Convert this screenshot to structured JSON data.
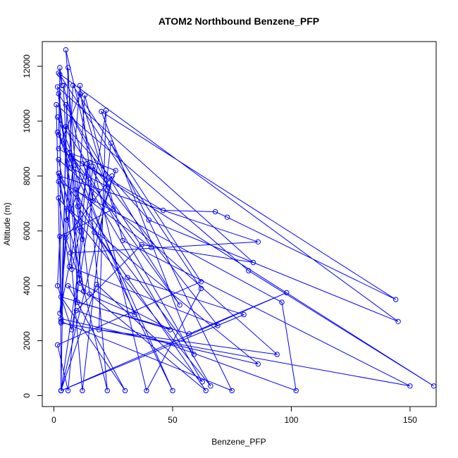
{
  "chart_data": {
    "type": "scatter",
    "title": "ATOM2 Northbound Benzene_PFP",
    "xlabel": "Benzene_PFP",
    "ylabel": "Altitude (m)",
    "xlim": [
      -4.9,
      161
    ],
    "ylim": [
      -400,
      12900
    ],
    "xticks": [
      0,
      50,
      100,
      150
    ],
    "yticks": [
      0,
      2000,
      4000,
      6000,
      8000,
      10000,
      12000
    ],
    "grid": false,
    "legend": "none",
    "colors": {
      "series": "#0000ff",
      "axis": "#000000"
    },
    "series": [
      {
        "points": [
          {
            "x": 3.0,
            "y": 180
          },
          {
            "x": 2.5,
            "y": 11950
          },
          {
            "x": 3.5,
            "y": 11300
          },
          {
            "x": 2.5,
            "y": 11700
          },
          {
            "x": 2.0,
            "y": 9500
          },
          {
            "x": 7.0,
            "y": 8300
          },
          {
            "x": 23.0,
            "y": 7600
          },
          {
            "x": 5.0,
            "y": 10600
          },
          {
            "x": 12.0,
            "y": 5700
          },
          {
            "x": 2.0,
            "y": 8100
          },
          {
            "x": 5.5,
            "y": 6400
          },
          {
            "x": 15.0,
            "y": 8500
          },
          {
            "x": 2.5,
            "y": 3000
          },
          {
            "x": 11.0,
            "y": 11300
          },
          {
            "x": 16.5,
            "y": 7100
          },
          {
            "x": 4.0,
            "y": 11300
          },
          {
            "x": 7.5,
            "y": 4600
          },
          {
            "x": 11.0,
            "y": 6000
          },
          {
            "x": 7.0,
            "y": 8700
          },
          {
            "x": 46.0,
            "y": 6750
          },
          {
            "x": 68.0,
            "y": 6700
          },
          {
            "x": 73.0,
            "y": 6500
          },
          {
            "x": 144.0,
            "y": 3500
          },
          {
            "x": 20.0,
            "y": 10350
          },
          {
            "x": 59.0,
            "y": 1500
          },
          {
            "x": 2.5,
            "y": 8000
          },
          {
            "x": 86.0,
            "y": 5600
          },
          {
            "x": 7.0,
            "y": 5200
          },
          {
            "x": 12.0,
            "y": 180
          },
          {
            "x": 24.0,
            "y": 9200
          },
          {
            "x": 75.0,
            "y": 180
          },
          {
            "x": 3.0,
            "y": 2700
          },
          {
            "x": 1.0,
            "y": 10600
          },
          {
            "x": 82.0,
            "y": 4550
          },
          {
            "x": 160.0,
            "y": 350
          },
          {
            "x": 2.0,
            "y": 9000
          },
          {
            "x": 11.0,
            "y": 11000
          },
          {
            "x": 25.0,
            "y": 6800
          },
          {
            "x": 2.5,
            "y": 5800
          },
          {
            "x": 1.5,
            "y": 4000
          },
          {
            "x": 7.5,
            "y": 2400
          },
          {
            "x": 22.0,
            "y": 10400
          },
          {
            "x": 19.0,
            "y": 2400
          },
          {
            "x": 94.0,
            "y": 1500
          },
          {
            "x": 2.0,
            "y": 8600
          },
          {
            "x": 6.0,
            "y": 6800
          },
          {
            "x": 86.0,
            "y": 1150
          },
          {
            "x": 3.0,
            "y": 2800
          },
          {
            "x": 6.0,
            "y": 11950
          },
          {
            "x": 10.0,
            "y": 3400
          },
          {
            "x": 57.0,
            "y": 2250
          },
          {
            "x": 98.0,
            "y": 3750
          },
          {
            "x": 3.0,
            "y": 180
          },
          {
            "x": 5.0,
            "y": 9800
          },
          {
            "x": 40.0,
            "y": 6400
          },
          {
            "x": 145.0,
            "y": 2700
          },
          {
            "x": 2.0,
            "y": 11750
          },
          {
            "x": 62.0,
            "y": 3900
          },
          {
            "x": 39.0,
            "y": 180
          },
          {
            "x": 5.0,
            "y": 12600
          },
          {
            "x": 9.0,
            "y": 8400
          },
          {
            "x": 15.0,
            "y": 3700
          },
          {
            "x": 64.0,
            "y": 180
          },
          {
            "x": 10.0,
            "y": 6900
          },
          {
            "x": 13.0,
            "y": 10950
          },
          {
            "x": 29.0,
            "y": 5650
          },
          {
            "x": 150.0,
            "y": 350
          },
          {
            "x": 3.0,
            "y": 2650
          },
          {
            "x": 8.0,
            "y": 11300
          },
          {
            "x": 62.0,
            "y": 4150
          },
          {
            "x": 1.5,
            "y": 1850
          },
          {
            "x": 6.0,
            "y": 180
          },
          {
            "x": 14.0,
            "y": 8450
          },
          {
            "x": 22.5,
            "y": 180
          },
          {
            "x": 2.0,
            "y": 7800
          },
          {
            "x": 96.0,
            "y": 3400
          },
          {
            "x": 102.0,
            "y": 180
          },
          {
            "x": 9.5,
            "y": 3100
          },
          {
            "x": 37.0,
            "y": 5500
          },
          {
            "x": 84.0,
            "y": 4850
          },
          {
            "x": 1.5,
            "y": 11250
          },
          {
            "x": 11.0,
            "y": 4100
          },
          {
            "x": 49.0,
            "y": 2400
          },
          {
            "x": 3.0,
            "y": 3600
          },
          {
            "x": 30.0,
            "y": 180
          },
          {
            "x": 6.0,
            "y": 4000
          },
          {
            "x": 34.0,
            "y": 2950
          },
          {
            "x": 1.5,
            "y": 10150
          },
          {
            "x": 53.0,
            "y": 3300
          },
          {
            "x": 6.5,
            "y": 8850
          },
          {
            "x": 26.0,
            "y": 8200
          },
          {
            "x": 17.0,
            "y": 5950
          },
          {
            "x": 31.0,
            "y": 4300
          },
          {
            "x": 80.0,
            "y": 2950
          },
          {
            "x": 3.0,
            "y": 180
          },
          {
            "x": 24.5,
            "y": 8000
          },
          {
            "x": 5.0,
            "y": 5750
          },
          {
            "x": 12.5,
            "y": 3800
          },
          {
            "x": 2.0,
            "y": 11000
          },
          {
            "x": 41.0,
            "y": 5400
          },
          {
            "x": 9.0,
            "y": 7500
          },
          {
            "x": 50.0,
            "y": 180
          },
          {
            "x": 1.5,
            "y": 9600
          },
          {
            "x": 62.5,
            "y": 500
          },
          {
            "x": 18.0,
            "y": 4050
          },
          {
            "x": 3.0,
            "y": 180
          },
          {
            "x": 16.5,
            "y": 8350
          },
          {
            "x": 69.0,
            "y": 2550
          },
          {
            "x": 6.5,
            "y": 4700
          },
          {
            "x": 2.0,
            "y": 7200
          },
          {
            "x": 66.0,
            "y": 350
          },
          {
            "x": 12.0,
            "y": 8450
          }
        ]
      }
    ]
  }
}
